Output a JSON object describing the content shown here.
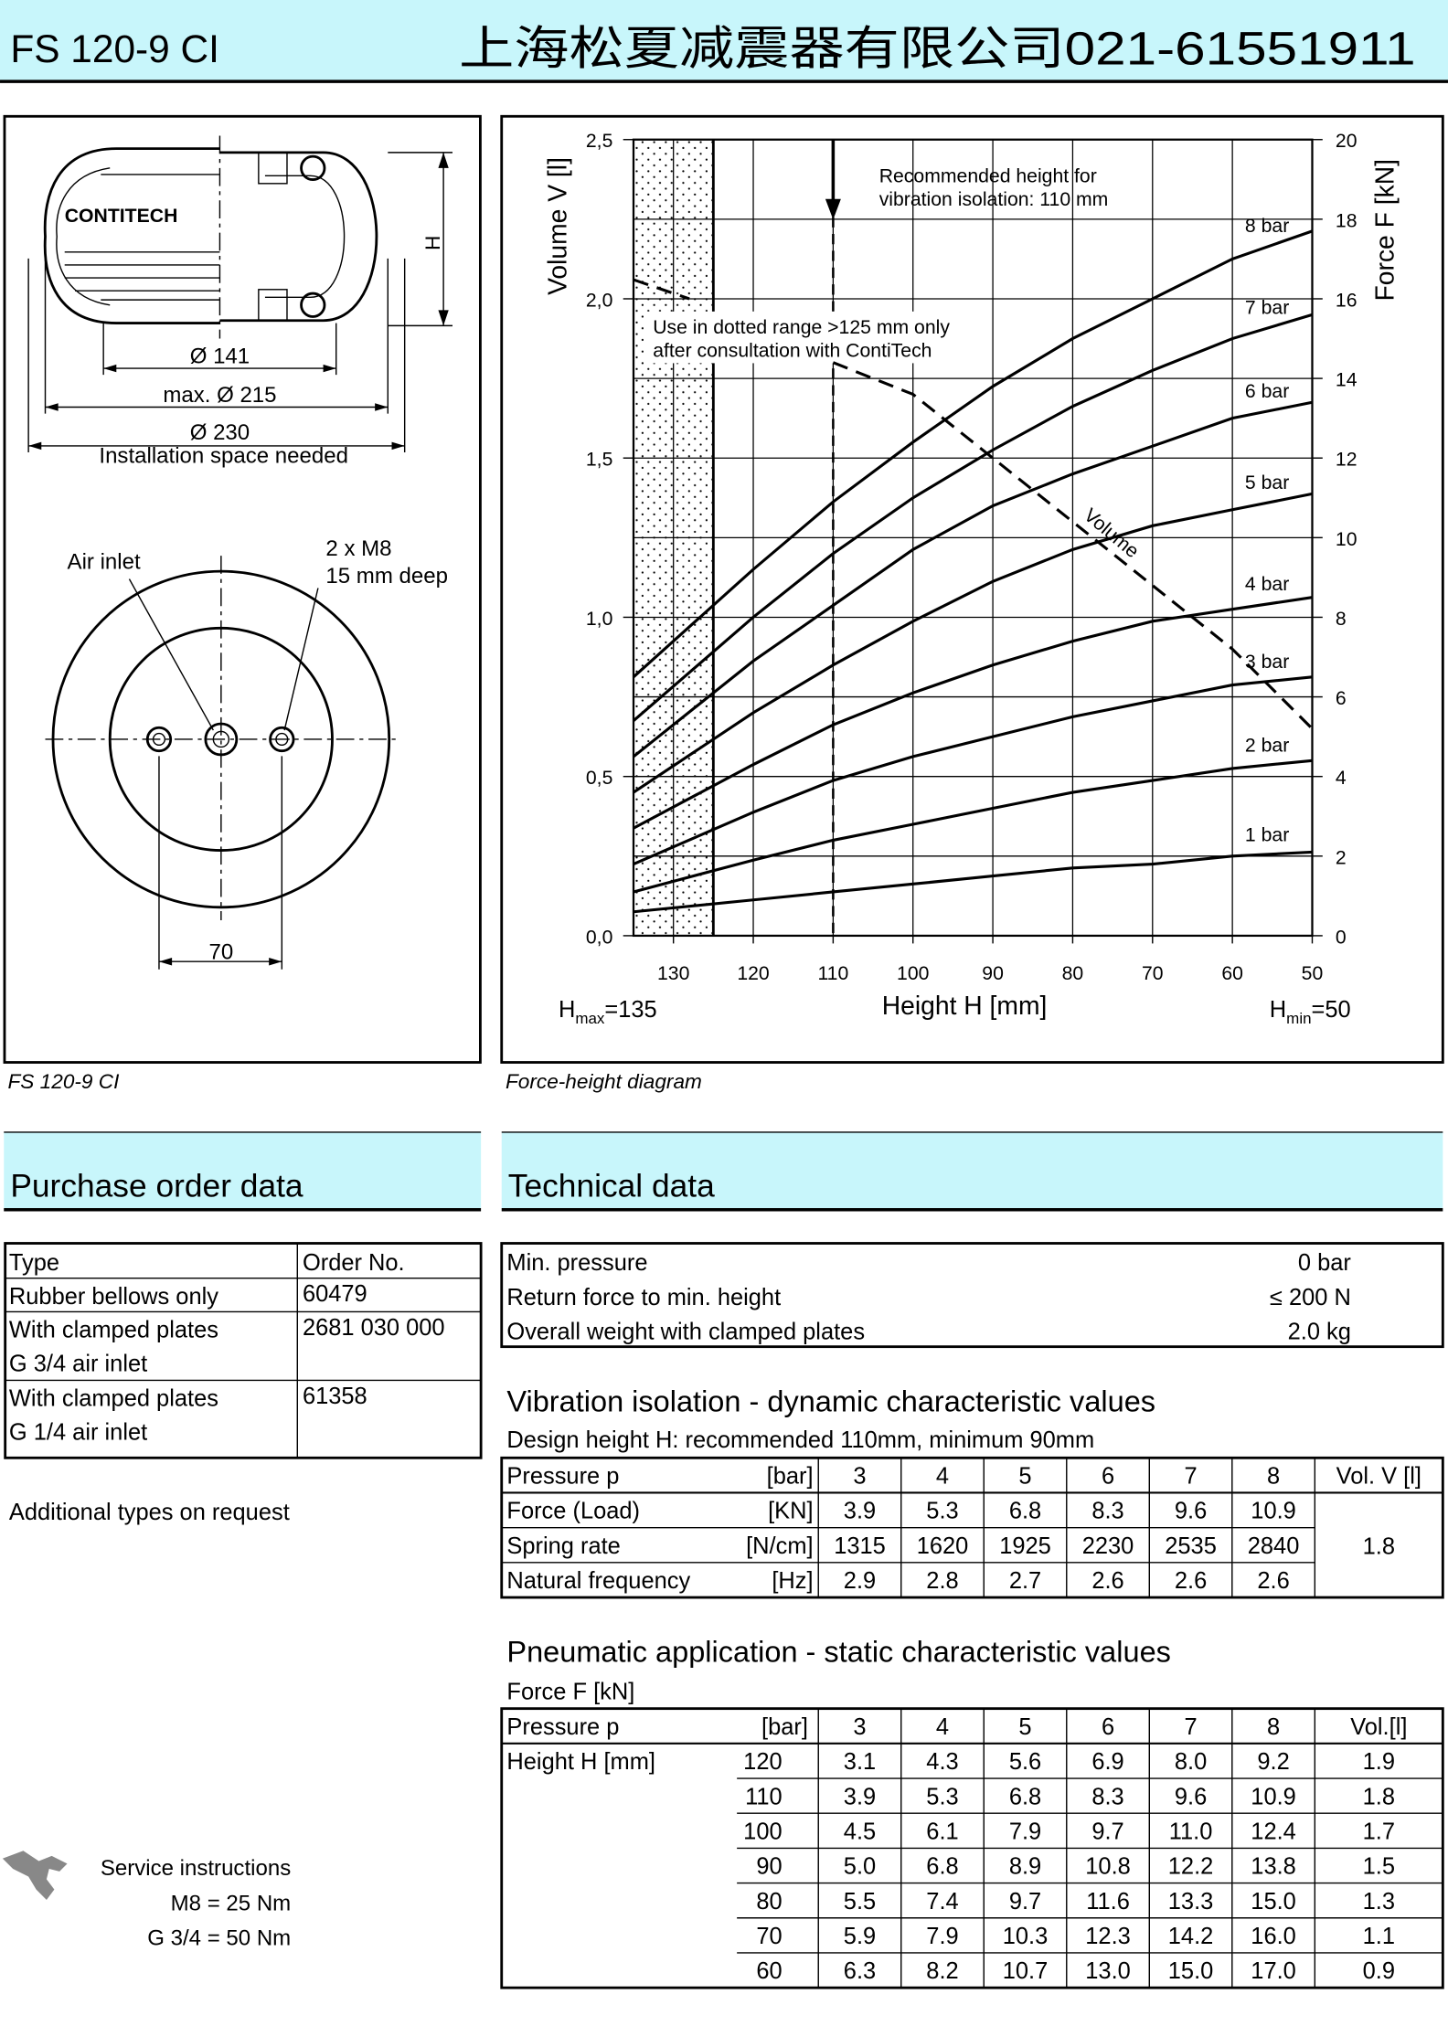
{
  "header": {
    "title": "FS 120-9 CI",
    "company": "上海松夏减震器有限公司021-61551911"
  },
  "drawing": {
    "caption": "FS 120-9 CI",
    "brand": "CONTITECH",
    "height_label": "H",
    "dims": [
      "Ø 141",
      "max. Ø 215",
      "Ø 230"
    ],
    "installation_note": "Installation space needed",
    "air_inlet": "Air inlet",
    "thread": [
      "2 x M8",
      "15 mm deep"
    ],
    "spacing": "70"
  },
  "chart_caption": "Force-height diagram",
  "chart_data": {
    "type": "line",
    "x": [
      135,
      120,
      110,
      100,
      90,
      80,
      70,
      60,
      50
    ],
    "xlim": [
      135,
      50
    ],
    "xticks": [
      130,
      120,
      110,
      100,
      90,
      80,
      70,
      60,
      50
    ],
    "xlabel": "Height H [mm]",
    "ylim": [
      0,
      2.5
    ],
    "yticks": [
      {
        "value": 0,
        "label": "0,0"
      },
      {
        "value": 0.5,
        "label": "0,5"
      },
      {
        "value": 1,
        "label": "1,0"
      },
      {
        "value": 1.5,
        "label": "1,5"
      },
      {
        "value": 2,
        "label": "2,0"
      },
      {
        "value": 2.5,
        "label": "2,5"
      }
    ],
    "ylabel": "Volume V [l]",
    "y2lim": [
      0,
      20
    ],
    "y2ticks": [
      0,
      2,
      4,
      6,
      8,
      10,
      12,
      14,
      16,
      18,
      20
    ],
    "y2label": "Force F [kN]",
    "grid": true,
    "dotted_range": [
      135,
      125
    ],
    "recommended_height": 110,
    "annotations": {
      "recommended": [
        "Recommended height for",
        "vibration isolation: 110 mm"
      ],
      "dotted": [
        "Use in dotted range >125 mm only",
        "after consultation with ContiTech"
      ],
      "hmax": {
        "symbol": "H",
        "sub": "max",
        "text": "=135"
      },
      "hmin": {
        "symbol": "H",
        "sub": "min",
        "text": "=50"
      }
    },
    "series": [
      {
        "name": "1 bar",
        "axis": "y2",
        "color": "#000000",
        "values": [
          0.6,
          0.9,
          1.1,
          1.3,
          1.5,
          1.7,
          1.8,
          2.0,
          2.1
        ]
      },
      {
        "name": "2 bar",
        "axis": "y2",
        "color": "#000000",
        "values": [
          1.1,
          1.9,
          2.4,
          2.8,
          3.2,
          3.6,
          3.9,
          4.2,
          4.4
        ]
      },
      {
        "name": "3 bar",
        "axis": "y2",
        "color": "#000000",
        "values": [
          1.8,
          3.1,
          3.9,
          4.5,
          5.0,
          5.5,
          5.9,
          6.3,
          6.5
        ]
      },
      {
        "name": "4 bar",
        "axis": "y2",
        "color": "#000000",
        "values": [
          2.7,
          4.3,
          5.3,
          6.1,
          6.8,
          7.4,
          7.9,
          8.2,
          8.5
        ]
      },
      {
        "name": "5 bar",
        "axis": "y2",
        "color": "#000000",
        "values": [
          3.6,
          5.6,
          6.8,
          7.9,
          8.9,
          9.7,
          10.3,
          10.7,
          11.1
        ]
      },
      {
        "name": "6 bar",
        "axis": "y2",
        "color": "#000000",
        "values": [
          4.5,
          6.9,
          8.3,
          9.7,
          10.8,
          11.6,
          12.3,
          13.0,
          13.4
        ]
      },
      {
        "name": "7 bar",
        "axis": "y2",
        "color": "#000000",
        "values": [
          5.4,
          8.0,
          9.6,
          11.0,
          12.2,
          13.3,
          14.2,
          15.0,
          15.6
        ]
      },
      {
        "name": "8 bar",
        "axis": "y2",
        "color": "#000000",
        "values": [
          6.5,
          9.2,
          10.9,
          12.4,
          13.8,
          15.0,
          16.0,
          17.0,
          17.7
        ]
      },
      {
        "name": "Volume",
        "axis": "y",
        "color": "#000000",
        "dash": true,
        "x": [
          135,
          128,
          120,
          110,
          100,
          90,
          80,
          70,
          60,
          50
        ],
        "values": [
          2.06,
          2.0,
          null,
          1.8,
          1.7,
          1.5,
          1.3,
          1.1,
          0.9,
          0.65
        ]
      }
    ]
  },
  "purchase": {
    "title": "Purchase order data",
    "header": [
      "Type",
      "Order No."
    ],
    "rows": [
      {
        "type": [
          "Rubber bellows only"
        ],
        "order": "60479"
      },
      {
        "type": [
          "With clamped plates",
          "G 3/4 air inlet"
        ],
        "order": "2681 030 000"
      },
      {
        "type": [
          "With clamped plates",
          "G 1/4 air inlet"
        ],
        "order": "61358"
      }
    ],
    "note": "Additional types on request"
  },
  "service": {
    "title": "Service instructions",
    "lines": [
      "M8 = 25 Nm",
      "G 3/4 = 50 Nm"
    ]
  },
  "technical": {
    "title": "Technical data",
    "rows": [
      [
        "Min. pressure",
        "0 bar"
      ],
      [
        "Return force to min. height",
        "≤ 200 N"
      ],
      [
        "Overall weight with clamped plates",
        "2.0 kg"
      ]
    ]
  },
  "vibration": {
    "title": "Vibration isolation - dynamic characteristic values",
    "subtitle": "Design height H: recommended 110mm, minimum 90mm",
    "header": [
      "Pressure p",
      "[bar]",
      "3",
      "4",
      "5",
      "6",
      "7",
      "8",
      "Vol. V [l]"
    ],
    "rows": [
      [
        "Force (Load)",
        "[KN]",
        "3.9",
        "5.3",
        "6.8",
        "8.3",
        "9.6",
        "10.9"
      ],
      [
        "Spring rate",
        "[N/cm]",
        "1315",
        "1620",
        "1925",
        "2230",
        "2535",
        "2840"
      ],
      [
        "Natural frequency",
        "[Hz]",
        "2.9",
        "2.8",
        "2.7",
        "2.6",
        "2.6",
        "2.6"
      ]
    ],
    "volume": "1.8"
  },
  "pneumatic": {
    "title": "Pneumatic application - static characteristic values",
    "subtitle": "Force F [kN]",
    "header": [
      "Pressure p",
      "[bar]",
      "3",
      "4",
      "5",
      "6",
      "7",
      "8",
      "Vol.[l]"
    ],
    "row_label": "Height H [mm]",
    "rows": [
      [
        "120",
        "3.1",
        "4.3",
        "5.6",
        "6.9",
        "8.0",
        "9.2",
        "1.9"
      ],
      [
        "110",
        "3.9",
        "5.3",
        "6.8",
        "8.3",
        "9.6",
        "10.9",
        "1.8"
      ],
      [
        "100",
        "4.5",
        "6.1",
        "7.9",
        "9.7",
        "11.0",
        "12.4",
        "1.7"
      ],
      [
        "90",
        "5.0",
        "6.8",
        "8.9",
        "10.8",
        "12.2",
        "13.8",
        "1.5"
      ],
      [
        "80",
        "5.5",
        "7.4",
        "9.7",
        "11.6",
        "13.3",
        "15.0",
        "1.3"
      ],
      [
        "70",
        "5.9",
        "7.9",
        "10.3",
        "12.3",
        "14.2",
        "16.0",
        "1.1"
      ],
      [
        "60",
        "6.3",
        "8.2",
        "10.7",
        "13.0",
        "15.0",
        "17.0",
        "0.9"
      ]
    ]
  }
}
